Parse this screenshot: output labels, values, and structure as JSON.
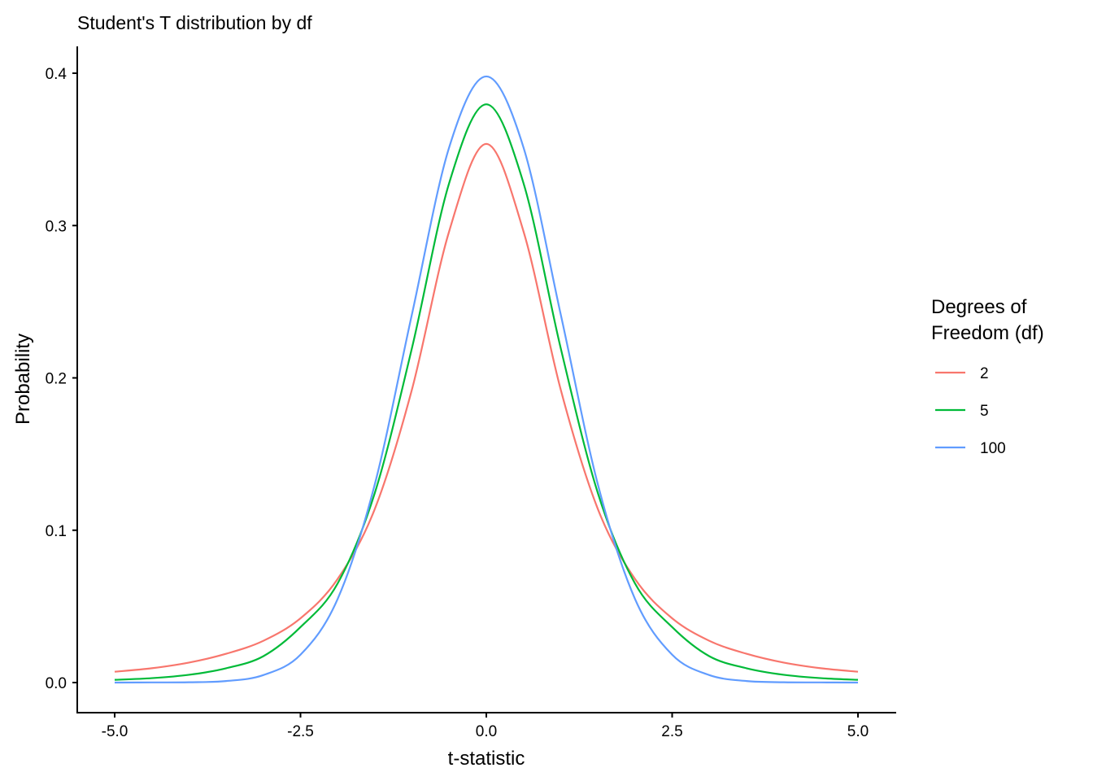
{
  "chart_data": {
    "type": "line",
    "title": "Student's T distribution by df",
    "xlabel": "t-statistic",
    "ylabel": "Probability",
    "xlim": [
      -5,
      5
    ],
    "ylim": [
      0,
      0.4
    ],
    "x_ticks": [
      "-5.0",
      "-2.5",
      "0.0",
      "2.5",
      "5.0"
    ],
    "y_ticks": [
      "0.0",
      "0.1",
      "0.2",
      "0.3",
      "0.4"
    ],
    "grid": false,
    "legend": {
      "title_lines": [
        "Degrees of",
        "Freedom (df)"
      ],
      "placement": "right"
    },
    "x": [
      -5.0,
      -4.5,
      -4.0,
      -3.5,
      -3.0,
      -2.5,
      -2.0,
      -1.5,
      -1.0,
      -0.5,
      0.0,
      0.5,
      1.0,
      1.5,
      2.0,
      2.5,
      3.0,
      3.5,
      4.0,
      4.5,
      5.0
    ],
    "series": [
      {
        "name": "2",
        "color": "#F8766D",
        "values": [
          0.0071,
          0.0094,
          0.0131,
          0.0189,
          0.0274,
          0.0422,
          0.068,
          0.114,
          0.1925,
          0.2962,
          0.3536,
          0.2962,
          0.1925,
          0.114,
          0.068,
          0.0422,
          0.0274,
          0.0189,
          0.0131,
          0.0094,
          0.0071
        ]
      },
      {
        "name": "5",
        "color": "#00BA38",
        "values": [
          0.0018,
          0.0029,
          0.0051,
          0.0094,
          0.0173,
          0.0364,
          0.0651,
          0.1245,
          0.2197,
          0.3279,
          0.3796,
          0.3279,
          0.2197,
          0.1245,
          0.0651,
          0.0364,
          0.0173,
          0.0094,
          0.0051,
          0.0029,
          0.0018
        ]
      },
      {
        "name": "100",
        "color": "#619CFF",
        "values": [
          0.0,
          0.0001,
          0.0002,
          0.001,
          0.0049,
          0.0183,
          0.0549,
          0.1302,
          0.2419,
          0.3513,
          0.3979,
          0.3513,
          0.2419,
          0.1302,
          0.0549,
          0.0183,
          0.0049,
          0.001,
          0.0002,
          0.0001,
          0.0
        ]
      }
    ]
  }
}
